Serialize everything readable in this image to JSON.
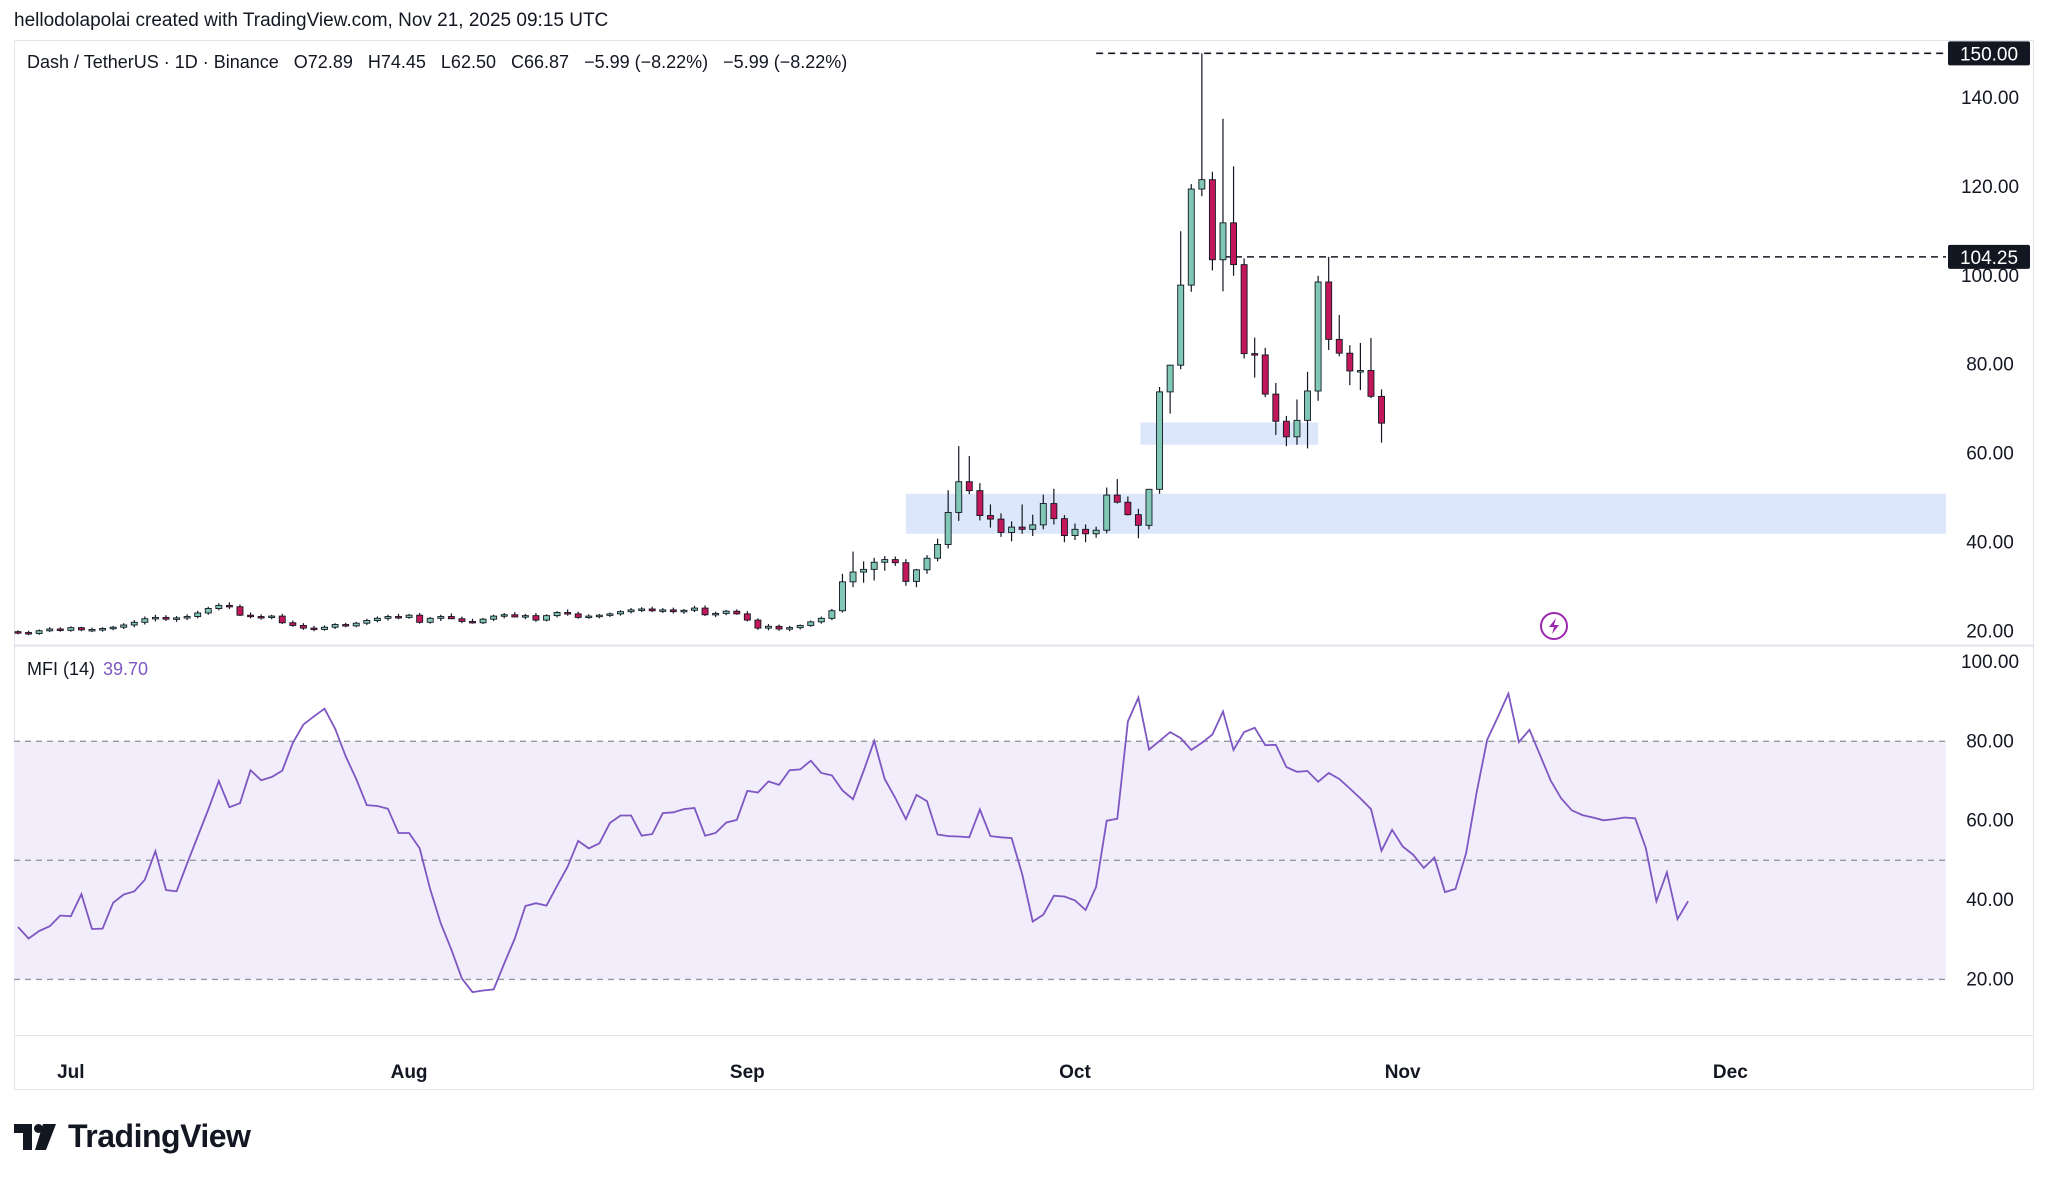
{
  "header": {
    "credit": "hellodolapolai created with TradingView.com, Nov 21, 2025 09:15 UTC"
  },
  "legend": {
    "symbol": "Dash / TetherUS · 1D · Binance",
    "open": "O72.89",
    "high": "H74.45",
    "low": "L62.50",
    "close": "C66.87",
    "change1": "−5.99 (−8.22%)",
    "change2": "−5.99 (−8.22%)"
  },
  "indicator": {
    "name": "MFI (14)",
    "value": "39.70"
  },
  "brand": {
    "name": "TradingView"
  },
  "colors": {
    "up": "#80c7b6",
    "down": "#c2185b",
    "mfi": "#7e57c2",
    "zone": "#dde7fb",
    "band": "#f1edfa"
  },
  "chart_data": [
    {
      "type": "candlestick",
      "title": "Dash / TetherUS · 1D · Binance",
      "x_ticks": [
        "Jul",
        "Aug",
        "Sep",
        "Oct",
        "Nov",
        "Dec"
      ],
      "y_ticks": [
        "20.00",
        "40.00",
        "60.00",
        "80.00",
        "100.00",
        "120.00",
        "140.00"
      ],
      "ylim": [
        17,
        153
      ],
      "price_labels": [
        {
          "label": "150.00",
          "value": 150
        },
        {
          "label": "104.25",
          "value": 104.25
        }
      ],
      "zones": [
        {
          "from": 42,
          "to": 51
        },
        {
          "from": 62,
          "to": 67
        }
      ],
      "candles": [
        {
          "o": 20.0,
          "h": 20.3,
          "l": 19.4,
          "c": 19.8
        },
        {
          "o": 19.8,
          "h": 20.2,
          "l": 19.2,
          "c": 19.6
        },
        {
          "o": 19.6,
          "h": 20.5,
          "l": 19.3,
          "c": 20.2
        },
        {
          "o": 20.2,
          "h": 21.0,
          "l": 19.9,
          "c": 20.6
        },
        {
          "o": 20.6,
          "h": 21.0,
          "l": 20.0,
          "c": 20.3
        },
        {
          "o": 20.3,
          "h": 21.2,
          "l": 20.0,
          "c": 20.9
        },
        {
          "o": 20.9,
          "h": 21.1,
          "l": 20.1,
          "c": 20.4
        },
        {
          "o": 20.4,
          "h": 20.9,
          "l": 19.9,
          "c": 20.5
        },
        {
          "o": 20.5,
          "h": 21.0,
          "l": 20.0,
          "c": 20.7
        },
        {
          "o": 20.7,
          "h": 21.3,
          "l": 20.3,
          "c": 21.0
        },
        {
          "o": 21.0,
          "h": 21.9,
          "l": 20.6,
          "c": 21.5
        },
        {
          "o": 21.5,
          "h": 22.6,
          "l": 21.0,
          "c": 22.1
        },
        {
          "o": 22.1,
          "h": 23.4,
          "l": 21.6,
          "c": 22.9
        },
        {
          "o": 22.9,
          "h": 23.8,
          "l": 22.3,
          "c": 23.2
        },
        {
          "o": 23.2,
          "h": 23.7,
          "l": 22.4,
          "c": 22.8
        },
        {
          "o": 22.8,
          "h": 23.5,
          "l": 22.2,
          "c": 23.1
        },
        {
          "o": 23.1,
          "h": 23.9,
          "l": 22.6,
          "c": 23.4
        },
        {
          "o": 23.4,
          "h": 24.7,
          "l": 23.0,
          "c": 24.2
        },
        {
          "o": 24.2,
          "h": 25.6,
          "l": 23.8,
          "c": 25.2
        },
        {
          "o": 25.2,
          "h": 26.4,
          "l": 24.8,
          "c": 25.9
        },
        {
          "o": 25.9,
          "h": 26.6,
          "l": 25.1,
          "c": 25.6
        },
        {
          "o": 25.6,
          "h": 26.1,
          "l": 23.5,
          "c": 23.7
        },
        {
          "o": 23.7,
          "h": 24.3,
          "l": 23.0,
          "c": 23.4
        },
        {
          "o": 23.4,
          "h": 23.9,
          "l": 22.7,
          "c": 23.2
        },
        {
          "o": 23.2,
          "h": 23.8,
          "l": 22.8,
          "c": 23.5
        },
        {
          "o": 23.5,
          "h": 24.0,
          "l": 21.7,
          "c": 22.0
        },
        {
          "o": 22.0,
          "h": 22.5,
          "l": 21.1,
          "c": 21.4
        },
        {
          "o": 21.4,
          "h": 21.9,
          "l": 20.4,
          "c": 20.8
        },
        {
          "o": 20.8,
          "h": 21.3,
          "l": 20.1,
          "c": 20.5
        },
        {
          "o": 20.5,
          "h": 21.4,
          "l": 20.2,
          "c": 21.0
        },
        {
          "o": 21.0,
          "h": 21.9,
          "l": 20.6,
          "c": 21.6
        },
        {
          "o": 21.6,
          "h": 22.0,
          "l": 21.0,
          "c": 21.3
        },
        {
          "o": 21.3,
          "h": 22.2,
          "l": 21.0,
          "c": 21.9
        },
        {
          "o": 21.9,
          "h": 22.9,
          "l": 21.5,
          "c": 22.5
        },
        {
          "o": 22.5,
          "h": 23.4,
          "l": 22.1,
          "c": 23.0
        },
        {
          "o": 23.0,
          "h": 23.8,
          "l": 22.5,
          "c": 23.4
        },
        {
          "o": 23.4,
          "h": 24.0,
          "l": 22.8,
          "c": 23.2
        },
        {
          "o": 23.2,
          "h": 24.0,
          "l": 22.9,
          "c": 23.7
        },
        {
          "o": 23.7,
          "h": 24.2,
          "l": 21.8,
          "c": 22.1
        },
        {
          "o": 22.1,
          "h": 23.3,
          "l": 21.8,
          "c": 23.0
        },
        {
          "o": 23.0,
          "h": 23.8,
          "l": 22.4,
          "c": 23.4
        },
        {
          "o": 23.4,
          "h": 24.1,
          "l": 22.9,
          "c": 22.9
        },
        {
          "o": 22.9,
          "h": 23.4,
          "l": 21.9,
          "c": 22.3
        },
        {
          "o": 22.3,
          "h": 22.9,
          "l": 21.8,
          "c": 22.0
        },
        {
          "o": 22.0,
          "h": 23.1,
          "l": 21.7,
          "c": 22.8
        },
        {
          "o": 22.8,
          "h": 23.8,
          "l": 22.4,
          "c": 23.5
        },
        {
          "o": 23.5,
          "h": 24.2,
          "l": 23.0,
          "c": 23.8
        },
        {
          "o": 23.8,
          "h": 24.4,
          "l": 23.2,
          "c": 23.3
        },
        {
          "o": 23.3,
          "h": 24.0,
          "l": 22.8,
          "c": 23.6
        },
        {
          "o": 23.6,
          "h": 24.2,
          "l": 22.2,
          "c": 22.6
        },
        {
          "o": 22.6,
          "h": 23.9,
          "l": 22.3,
          "c": 23.6
        },
        {
          "o": 23.6,
          "h": 24.6,
          "l": 23.2,
          "c": 24.3
        },
        {
          "o": 24.3,
          "h": 25.0,
          "l": 23.6,
          "c": 24.0
        },
        {
          "o": 24.0,
          "h": 24.5,
          "l": 22.9,
          "c": 23.2
        },
        {
          "o": 23.2,
          "h": 23.9,
          "l": 22.9,
          "c": 23.5
        },
        {
          "o": 23.5,
          "h": 24.0,
          "l": 23.0,
          "c": 23.7
        },
        {
          "o": 23.7,
          "h": 24.3,
          "l": 23.3,
          "c": 24.0
        },
        {
          "o": 24.0,
          "h": 24.8,
          "l": 23.6,
          "c": 24.5
        },
        {
          "o": 24.5,
          "h": 25.3,
          "l": 24.1,
          "c": 24.9
        },
        {
          "o": 24.9,
          "h": 25.5,
          "l": 24.4,
          "c": 25.1
        },
        {
          "o": 25.1,
          "h": 25.6,
          "l": 24.4,
          "c": 24.7
        },
        {
          "o": 24.7,
          "h": 25.3,
          "l": 24.2,
          "c": 24.9
        },
        {
          "o": 24.9,
          "h": 25.4,
          "l": 24.1,
          "c": 24.5
        },
        {
          "o": 24.5,
          "h": 25.1,
          "l": 24.0,
          "c": 24.8
        },
        {
          "o": 24.8,
          "h": 25.8,
          "l": 24.4,
          "c": 25.3
        },
        {
          "o": 25.3,
          "h": 25.9,
          "l": 23.5,
          "c": 23.8
        },
        {
          "o": 23.8,
          "h": 24.5,
          "l": 23.3,
          "c": 24.1
        },
        {
          "o": 24.1,
          "h": 24.9,
          "l": 23.7,
          "c": 24.6
        },
        {
          "o": 24.6,
          "h": 25.0,
          "l": 23.8,
          "c": 24.0
        },
        {
          "o": 24.0,
          "h": 24.6,
          "l": 22.3,
          "c": 22.6
        },
        {
          "o": 22.6,
          "h": 23.0,
          "l": 20.4,
          "c": 20.8
        },
        {
          "o": 20.8,
          "h": 21.7,
          "l": 20.3,
          "c": 21.2
        },
        {
          "o": 21.2,
          "h": 21.6,
          "l": 20.2,
          "c": 20.6
        },
        {
          "o": 20.6,
          "h": 21.3,
          "l": 20.1,
          "c": 20.9
        },
        {
          "o": 20.9,
          "h": 21.6,
          "l": 20.5,
          "c": 21.4
        },
        {
          "o": 21.4,
          "h": 22.5,
          "l": 21.1,
          "c": 22.2
        },
        {
          "o": 22.2,
          "h": 23.4,
          "l": 21.8,
          "c": 23.0
        },
        {
          "o": 23.0,
          "h": 25.1,
          "l": 22.6,
          "c": 24.7
        },
        {
          "o": 24.7,
          "h": 33.0,
          "l": 24.3,
          "c": 31.2
        },
        {
          "o": 31.2,
          "h": 38.0,
          "l": 30.0,
          "c": 33.4
        },
        {
          "o": 33.4,
          "h": 35.8,
          "l": 31.0,
          "c": 34.0
        },
        {
          "o": 34.0,
          "h": 36.6,
          "l": 31.5,
          "c": 35.6
        },
        {
          "o": 35.6,
          "h": 37.0,
          "l": 33.7,
          "c": 36.2
        },
        {
          "o": 36.2,
          "h": 36.9,
          "l": 34.8,
          "c": 35.5
        },
        {
          "o": 35.5,
          "h": 36.3,
          "l": 30.3,
          "c": 31.3
        },
        {
          "o": 31.3,
          "h": 34.1,
          "l": 30.0,
          "c": 33.9
        },
        {
          "o": 33.9,
          "h": 37.2,
          "l": 33.0,
          "c": 36.5
        },
        {
          "o": 36.5,
          "h": 40.9,
          "l": 35.8,
          "c": 39.6
        },
        {
          "o": 39.6,
          "h": 51.8,
          "l": 38.7,
          "c": 46.8
        },
        {
          "o": 46.8,
          "h": 61.7,
          "l": 44.9,
          "c": 53.7
        },
        {
          "o": 53.7,
          "h": 59.5,
          "l": 50.9,
          "c": 51.7
        },
        {
          "o": 51.7,
          "h": 53.4,
          "l": 45.0,
          "c": 46.1
        },
        {
          "o": 46.1,
          "h": 48.6,
          "l": 43.4,
          "c": 45.3
        },
        {
          "o": 45.3,
          "h": 46.6,
          "l": 41.3,
          "c": 42.3
        },
        {
          "o": 42.3,
          "h": 44.8,
          "l": 40.3,
          "c": 43.5
        },
        {
          "o": 43.5,
          "h": 48.6,
          "l": 42.0,
          "c": 43.0
        },
        {
          "o": 43.0,
          "h": 46.3,
          "l": 41.5,
          "c": 44.0
        },
        {
          "o": 44.0,
          "h": 50.8,
          "l": 43.0,
          "c": 48.8
        },
        {
          "o": 48.8,
          "h": 52.1,
          "l": 44.1,
          "c": 45.4
        },
        {
          "o": 45.4,
          "h": 46.2,
          "l": 40.1,
          "c": 41.6
        },
        {
          "o": 41.6,
          "h": 44.3,
          "l": 40.6,
          "c": 43.0
        },
        {
          "o": 43.0,
          "h": 44.1,
          "l": 40.1,
          "c": 42.0
        },
        {
          "o": 42.0,
          "h": 43.6,
          "l": 41.1,
          "c": 42.8
        },
        {
          "o": 42.8,
          "h": 52.4,
          "l": 42.1,
          "c": 50.7
        },
        {
          "o": 50.7,
          "h": 54.3,
          "l": 48.8,
          "c": 49.1
        },
        {
          "o": 49.1,
          "h": 50.4,
          "l": 46.1,
          "c": 46.3
        },
        {
          "o": 46.3,
          "h": 47.6,
          "l": 41.0,
          "c": 43.9
        },
        {
          "o": 43.9,
          "h": 52.1,
          "l": 43.0,
          "c": 52.0
        },
        {
          "o": 52.0,
          "h": 75.0,
          "l": 51.0,
          "c": 73.9
        },
        {
          "o": 73.9,
          "h": 80.0,
          "l": 69.0,
          "c": 79.9
        },
        {
          "o": 79.9,
          "h": 110.0,
          "l": 79.0,
          "c": 97.9
        },
        {
          "o": 97.9,
          "h": 120.6,
          "l": 96.4,
          "c": 119.5
        },
        {
          "o": 119.5,
          "h": 150.0,
          "l": 117.9,
          "c": 121.6
        },
        {
          "o": 121.6,
          "h": 123.4,
          "l": 101.2,
          "c": 103.6
        },
        {
          "o": 103.6,
          "h": 135.3,
          "l": 96.5,
          "c": 111.9
        },
        {
          "o": 111.9,
          "h": 124.6,
          "l": 100.0,
          "c": 102.5
        },
        {
          "o": 102.5,
          "h": 103.9,
          "l": 81.4,
          "c": 82.5
        },
        {
          "o": 82.5,
          "h": 86.1,
          "l": 77.1,
          "c": 82.2
        },
        {
          "o": 82.2,
          "h": 83.8,
          "l": 72.7,
          "c": 73.4
        },
        {
          "o": 73.4,
          "h": 75.9,
          "l": 64.2,
          "c": 67.3
        },
        {
          "o": 67.3,
          "h": 68.5,
          "l": 61.7,
          "c": 63.8
        },
        {
          "o": 63.8,
          "h": 72.2,
          "l": 62.0,
          "c": 67.5
        },
        {
          "o": 67.5,
          "h": 78.4,
          "l": 61.2,
          "c": 74.1
        },
        {
          "o": 74.1,
          "h": 100.0,
          "l": 71.9,
          "c": 98.6
        },
        {
          "o": 98.6,
          "h": 104.25,
          "l": 83.3,
          "c": 85.7
        },
        {
          "o": 85.7,
          "h": 91.2,
          "l": 81.9,
          "c": 82.6
        },
        {
          "o": 82.6,
          "h": 84.4,
          "l": 75.4,
          "c": 78.6
        },
        {
          "o": 78.6,
          "h": 84.9,
          "l": 74.3,
          "c": 78.7
        },
        {
          "o": 78.7,
          "h": 86.0,
          "l": 72.5,
          "c": 72.9
        },
        {
          "o": 72.89,
          "h": 74.45,
          "l": 62.5,
          "c": 66.87
        }
      ]
    },
    {
      "type": "line",
      "title": "MFI (14)",
      "y_ticks": [
        "20.00",
        "40.00",
        "60.00",
        "80.00",
        "100.00"
      ],
      "ylim": [
        6,
        104
      ],
      "reference_lines": [
        20,
        50,
        80
      ],
      "band": [
        20,
        80
      ],
      "values": [
        33.2,
        30.3,
        32.2,
        33.4,
        36.1,
        35.9,
        41.5,
        32.7,
        32.8,
        39.3,
        41.4,
        42.2,
        45.1,
        52.3,
        42.5,
        42.2,
        49.2,
        56.0,
        62.8,
        70.0,
        63.4,
        64.4,
        72.7,
        70.2,
        71.0,
        72.6,
        79.6,
        84.2,
        86.3,
        88.2,
        83.2,
        76.2,
        70.5,
        63.9,
        63.7,
        63.0,
        56.9,
        56.9,
        53.0,
        42.7,
        34.1,
        27.5,
        20.2,
        16.8,
        17.2,
        17.5,
        24.0,
        30.3,
        38.5,
        39.2,
        38.6,
        43.6,
        48.4,
        54.9,
        53.0,
        54.3,
        59.4,
        61.3,
        61.3,
        56.2,
        56.6,
        61.9,
        62.1,
        62.9,
        63.2,
        56.2,
        56.9,
        59.5,
        60.2,
        67.5,
        67.1,
        69.9,
        69.0,
        72.7,
        72.9,
        75.1,
        72.0,
        71.4,
        67.6,
        65.4,
        72.5,
        80.1,
        70.5,
        65.7,
        60.4,
        66.5,
        64.9,
        56.5,
        56.1,
        56.0,
        55.8,
        62.8,
        56.1,
        55.8,
        55.6,
        46.6,
        34.6,
        36.3,
        41.1,
        40.9,
        39.9,
        37.5,
        43.3,
        60.0,
        60.5,
        85.0,
        91.0,
        77.9,
        80.1,
        82.3,
        80.8,
        77.8,
        79.6,
        81.7,
        87.5,
        77.8,
        82.3,
        83.4,
        79.0,
        79.1,
        73.5,
        72.3,
        72.5,
        69.8,
        72.0,
        70.5,
        68.1,
        65.6,
        62.9,
        52.4,
        57.7,
        53.5,
        51.4,
        48.1,
        50.7,
        42.0,
        42.8,
        51.8,
        67.2,
        80.4,
        86.1,
        92.0,
        79.8,
        82.9,
        76.5,
        70.1,
        65.6,
        62.6,
        61.4,
        60.8,
        60.1,
        60.4,
        60.8,
        60.6,
        53.1,
        39.7,
        47.0,
        35.2,
        39.7
      ]
    }
  ]
}
